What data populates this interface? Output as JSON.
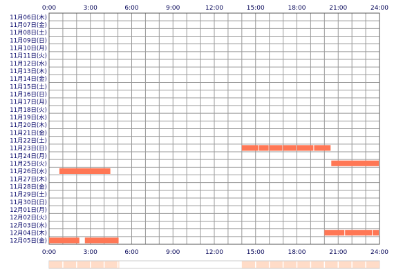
{
  "chart_data": {
    "type": "timeline",
    "x_ticks": [
      "0:00",
      "3:00",
      "6:00",
      "9:00",
      "12:00",
      "15:00",
      "18:00",
      "21:00",
      "24:00"
    ],
    "x_range_hours": [
      0,
      24
    ],
    "rows": [
      "11月06日(木)",
      "11月07日(金)",
      "11月08日(土)",
      "11月09日(日)",
      "11月10日(月)",
      "11月11日(火)",
      "11月12日(水)",
      "11月13日(木)",
      "11月14日(金)",
      "11月15日(土)",
      "11月16日(日)",
      "11月17日(月)",
      "11月18日(火)",
      "11月19日(水)",
      "11月20日(木)",
      "11月21日(金)",
      "11月22日(土)",
      "11月23日(日)",
      "11月24日(月)",
      "11月25日(火)",
      "11月26日(水)",
      "11月27日(木)",
      "11月28日(金)",
      "11月29日(土)",
      "11月30日(日)",
      "12月01日(月)",
      "12月02日(火)",
      "12月03日(水)",
      "12月04日(木)",
      "12月05日(金)"
    ],
    "segments": [
      {
        "row": 17,
        "start": 14.0,
        "end": 15.25
      },
      {
        "row": 17,
        "start": 15.25,
        "end": 16.0
      },
      {
        "row": 17,
        "start": 16.0,
        "end": 17.0
      },
      {
        "row": 17,
        "start": 17.0,
        "end": 18.0
      },
      {
        "row": 17,
        "start": 18.0,
        "end": 19.25
      },
      {
        "row": 17,
        "start": 19.25,
        "end": 20.5
      },
      {
        "row": 19,
        "start": 20.5,
        "end": 24.0
      },
      {
        "row": 20,
        "start": 0.75,
        "end": 4.5
      },
      {
        "row": 28,
        "start": 20.0,
        "end": 21.5
      },
      {
        "row": 28,
        "start": 21.5,
        "end": 23.5
      },
      {
        "row": 28,
        "start": 23.5,
        "end": 24.0
      },
      {
        "row": 29,
        "start": 0.0,
        "end": 2.25
      },
      {
        "row": 29,
        "start": 2.6,
        "end": 5.1
      }
    ],
    "summary_segments": [
      {
        "start": 0.0,
        "end": 5.1
      },
      {
        "start": 14.0,
        "end": 24.0
      }
    ],
    "grid": true,
    "colors": {
      "bar": "#ff7755",
      "bar_divider": "#ffc0b0",
      "grid": "#999999",
      "border": "#555555",
      "summary_fill": "#ffdcc8",
      "summary_border": "#cccccc",
      "tick_text": "#000055"
    }
  }
}
